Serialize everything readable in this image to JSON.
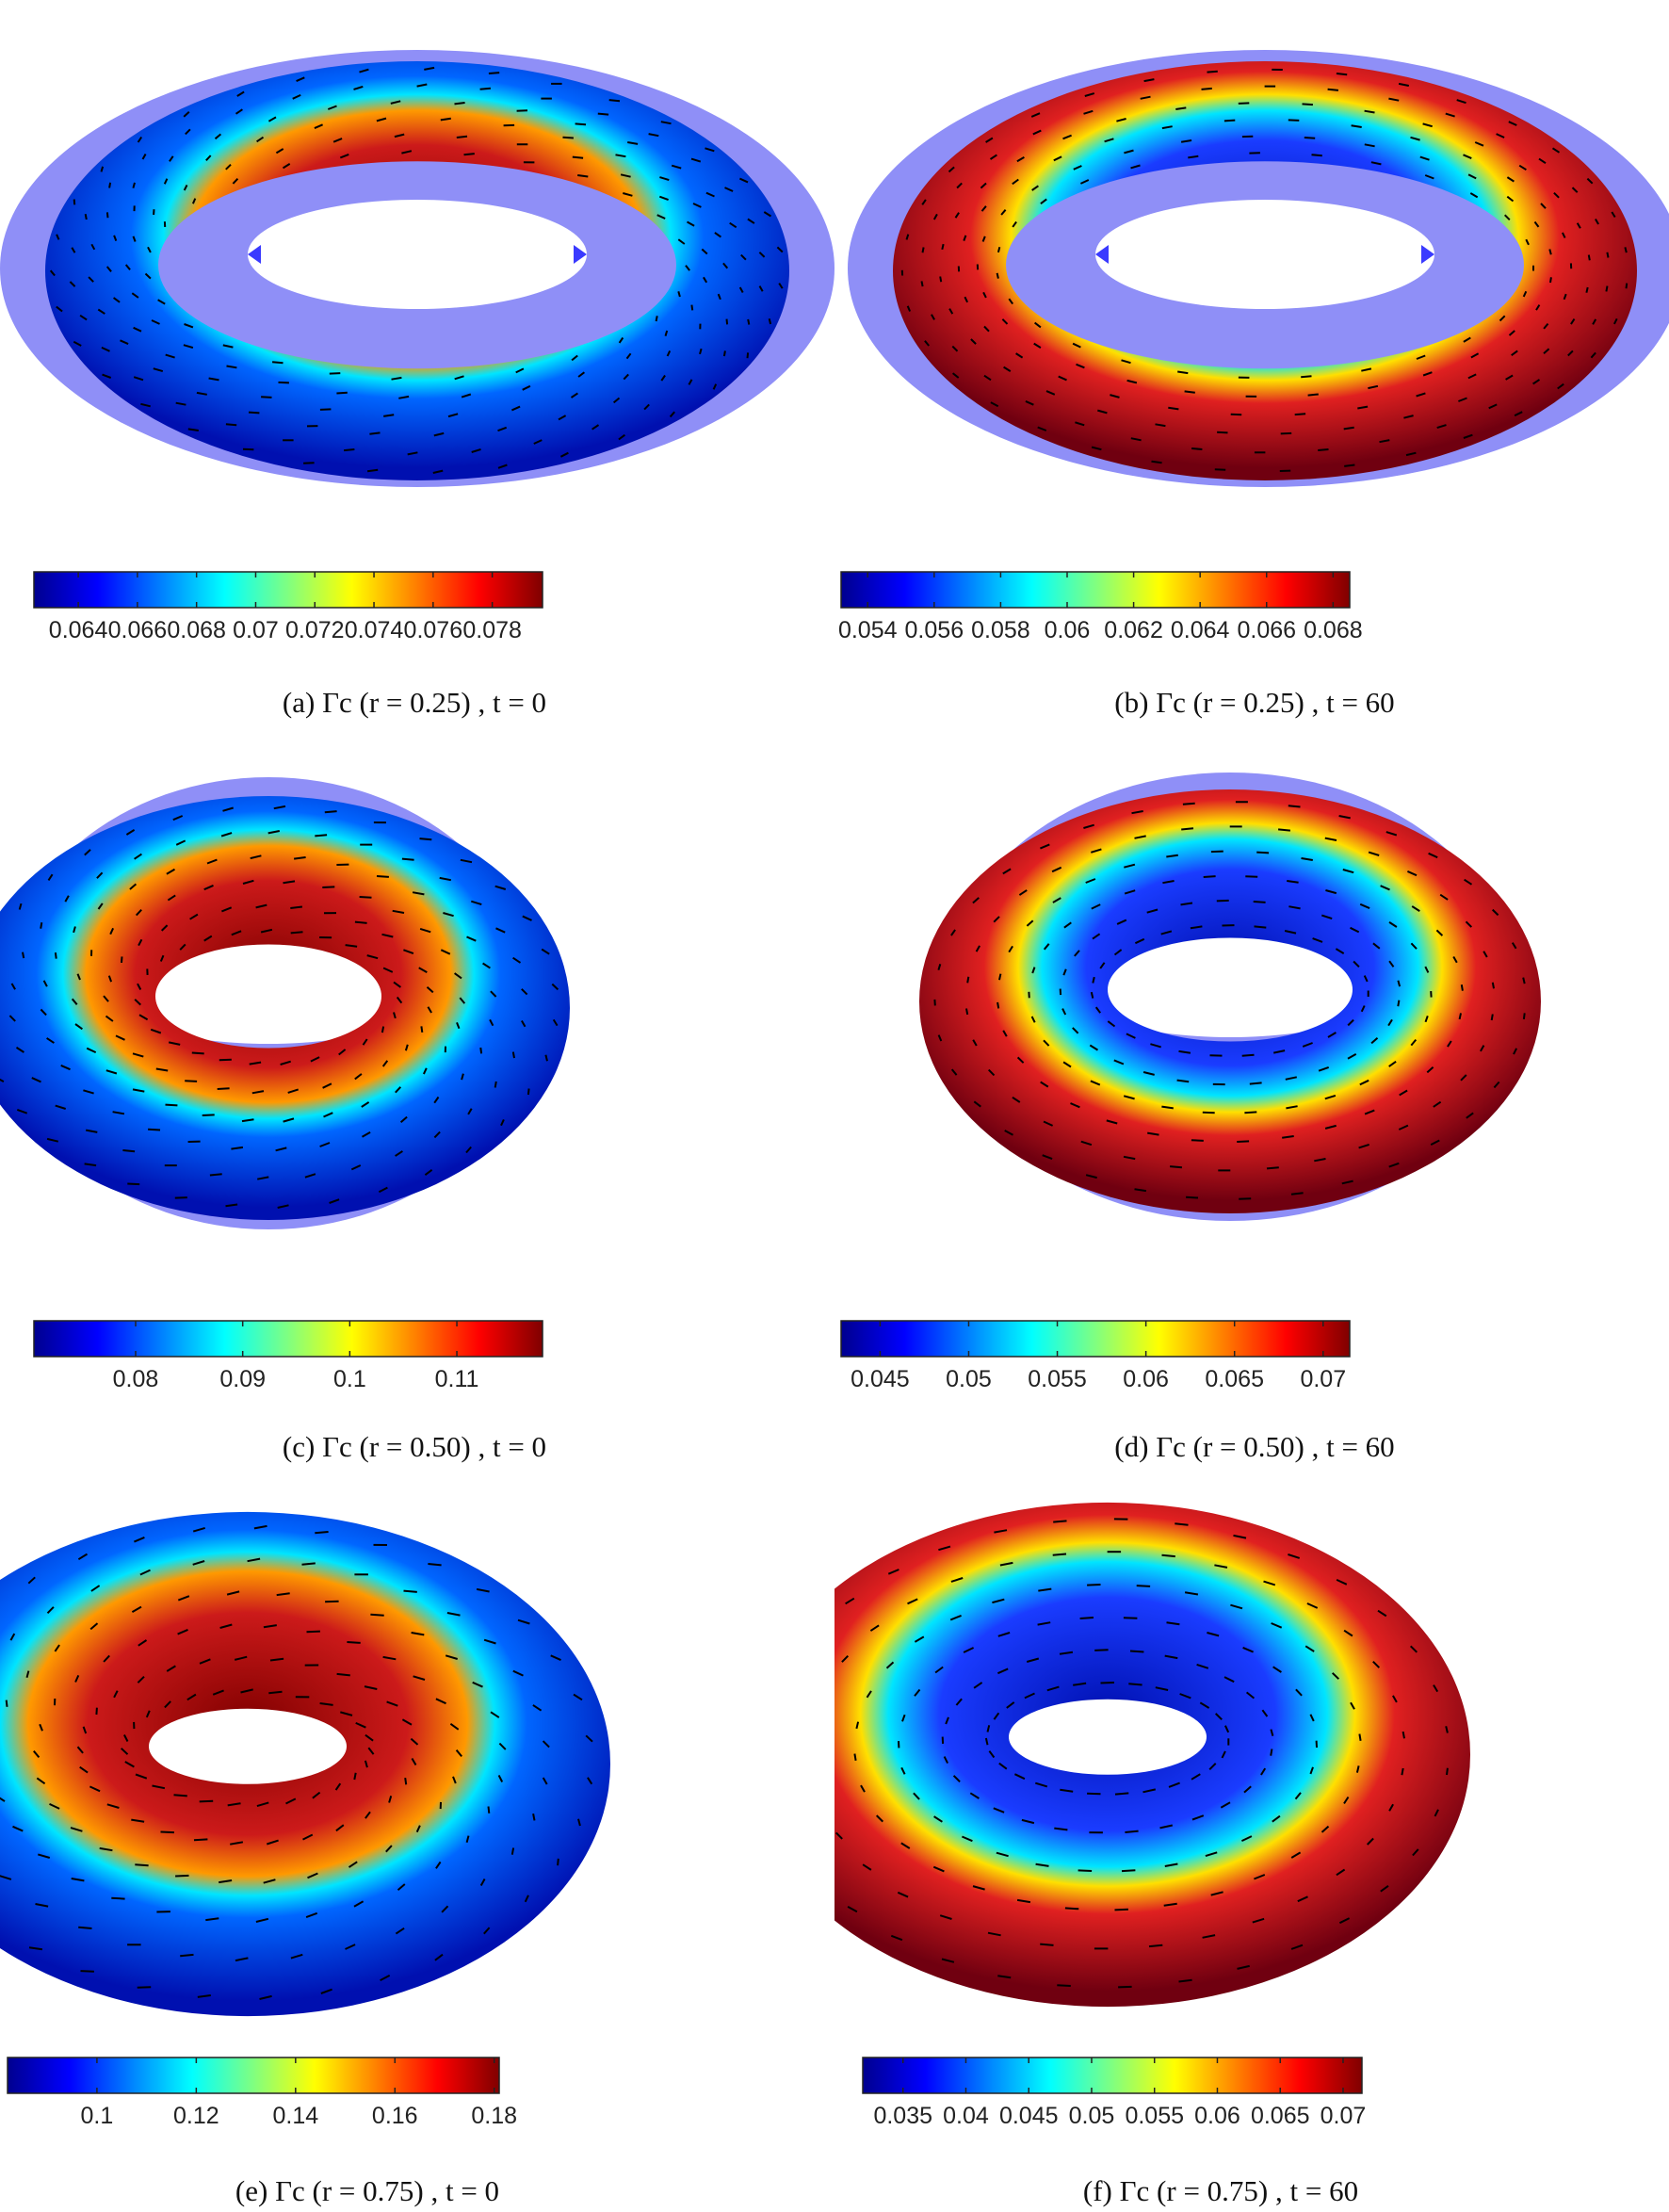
{
  "figure": {
    "colormap_stops": [
      "#00008f",
      "#0000ff",
      "#0080ff",
      "#00ffff",
      "#80ff80",
      "#ffff00",
      "#ff8000",
      "#ff0000",
      "#800000"
    ],
    "plate_color": "#8f8ff7",
    "arrow_color": "#000000",
    "panels": [
      {
        "id": "a",
        "caption": "(a) Γc (r = 0.25) , t = 0",
        "torus": {
          "inner_hot": true,
          "tube_scale": 0.25
        },
        "colorbar": {
          "min": 0.0625,
          "max": 0.0797,
          "ticks": [
            "0.064",
            "0.066",
            "0.068",
            "0.07",
            "0.072",
            "0.074",
            "0.076",
            "0.078"
          ],
          "tick_values": [
            0.064,
            0.066,
            0.068,
            0.07,
            0.072,
            0.074,
            0.076,
            0.078
          ]
        }
      },
      {
        "id": "b",
        "caption": "(b) Γc (r = 0.25) , t = 60",
        "torus": {
          "inner_hot": false,
          "tube_scale": 0.25
        },
        "colorbar": {
          "min": 0.0532,
          "max": 0.0685,
          "ticks": [
            "0.054",
            "0.056",
            "0.058",
            "0.06",
            "0.062",
            "0.064",
            "0.066",
            "0.068"
          ],
          "tick_values": [
            0.054,
            0.056,
            0.058,
            0.06,
            0.062,
            0.064,
            0.066,
            0.068
          ]
        }
      },
      {
        "id": "c",
        "caption": "(c) Γc (r = 0.50) , t = 0",
        "torus": {
          "inner_hot": true,
          "tube_scale": 0.5
        },
        "colorbar": {
          "min": 0.0705,
          "max": 0.118,
          "ticks": [
            "0.08",
            "0.09",
            "0.1",
            "0.11"
          ],
          "tick_values": [
            0.08,
            0.09,
            0.1,
            0.11
          ]
        }
      },
      {
        "id": "d",
        "caption": "(d) Γc (r = 0.50) , t = 60",
        "torus": {
          "inner_hot": false,
          "tube_scale": 0.5
        },
        "colorbar": {
          "min": 0.0428,
          "max": 0.0715,
          "ticks": [
            "0.045",
            "0.05",
            "0.055",
            "0.06",
            "0.065",
            "0.07"
          ],
          "tick_values": [
            0.045,
            0.05,
            0.055,
            0.06,
            0.065,
            0.07
          ]
        }
      },
      {
        "id": "e",
        "caption": "(e) Γc (r = 0.75) , t = 0",
        "torus": {
          "inner_hot": true,
          "tube_scale": 0.75
        },
        "colorbar": {
          "min": 0.082,
          "max": 0.181,
          "ticks": [
            "0.1",
            "0.12",
            "0.14",
            "0.16",
            "0.18"
          ],
          "tick_values": [
            0.1,
            0.12,
            0.14,
            0.16,
            0.18
          ]
        }
      },
      {
        "id": "f",
        "caption": "(f) Γc (r = 0.75) , t = 60",
        "torus": {
          "inner_hot": false,
          "tube_scale": 0.75
        },
        "colorbar": {
          "min": 0.0318,
          "max": 0.0715,
          "ticks": [
            "0.035",
            "0.04",
            "0.045",
            "0.05",
            "0.055",
            "0.06",
            "0.065",
            "0.07"
          ],
          "tick_values": [
            0.035,
            0.04,
            0.045,
            0.05,
            0.055,
            0.06,
            0.065,
            0.07
          ]
        }
      }
    ]
  }
}
